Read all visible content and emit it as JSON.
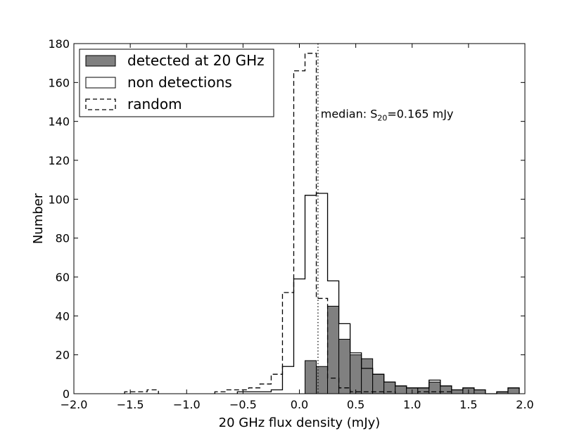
{
  "chart_data": {
    "type": "histogram",
    "xlabel": "20 GHz flux density (mJy)",
    "ylabel": "Number",
    "xlim": [
      -2.0,
      2.0
    ],
    "ylim": [
      0,
      180
    ],
    "x_ticks": [
      -2.0,
      -1.5,
      -1.0,
      -0.5,
      0.0,
      0.5,
      1.0,
      1.5,
      2.0
    ],
    "x_tick_labels": [
      "−2.0",
      "−1.5",
      "−1.0",
      "−0.5",
      "0.0",
      "0.5",
      "1.0",
      "1.5",
      "2.0"
    ],
    "y_ticks": [
      0,
      20,
      40,
      60,
      80,
      100,
      120,
      140,
      160,
      180
    ],
    "y_tick_labels": [
      "0",
      "20",
      "40",
      "60",
      "80",
      "100",
      "120",
      "140",
      "160",
      "180"
    ],
    "bin_width": 0.1,
    "grid": false,
    "legend_position": "top-left",
    "series": [
      {
        "name": "random",
        "style": "dashed-step",
        "bin_left": [
          -1.55,
          -1.45,
          -1.35,
          -0.75,
          -0.65,
          -0.55,
          -0.45,
          -0.35,
          -0.25,
          -0.15,
          -0.05,
          0.05,
          0.15,
          0.25,
          0.35,
          0.45,
          0.55,
          0.65,
          0.75,
          1.05,
          1.15,
          1.25
        ],
        "values": [
          1,
          1,
          2,
          1,
          2,
          2,
          3,
          5,
          10,
          52,
          166,
          175,
          49,
          8,
          3,
          1,
          1,
          1,
          1,
          1,
          1,
          1
        ]
      },
      {
        "name": "non detections",
        "style": "solid-step",
        "bin_left": [
          -0.55,
          -0.45,
          -0.35,
          -0.25,
          -0.15,
          -0.05,
          0.05,
          0.15,
          0.25,
          0.35,
          0.45,
          0.55,
          0.65,
          0.75,
          0.85,
          0.95,
          1.05,
          1.15,
          1.25,
          1.35,
          1.45,
          1.55,
          1.65,
          1.75,
          1.85
        ],
        "values": [
          1,
          1,
          1,
          2,
          14,
          59,
          102,
          103,
          58,
          36,
          21,
          13,
          10,
          6,
          4,
          3,
          3,
          7,
          4,
          2,
          3,
          2,
          0,
          1,
          3
        ]
      },
      {
        "name": "detected at 20 GHz",
        "style": "filled-gray",
        "bin_left": [
          0.05,
          0.15,
          0.25,
          0.35,
          0.45,
          0.55,
          0.65,
          0.75,
          0.85,
          0.95,
          1.05,
          1.15,
          1.25,
          1.35,
          1.45,
          1.55,
          1.65,
          1.75,
          1.85
        ],
        "values": [
          17,
          14,
          45,
          28,
          20,
          18,
          10,
          6,
          4,
          3,
          3,
          6,
          4,
          2,
          3,
          2,
          0,
          1,
          3
        ]
      }
    ],
    "median_line": {
      "x": 0.165,
      "style": "dotted"
    },
    "annotation": {
      "prefix": "median: S",
      "subscript": "20",
      "suffix": "=0.165 mJy",
      "x": 0.17,
      "y": 140
    },
    "colors": {
      "filled": "#808080",
      "line": "#000000",
      "background": "#ffffff"
    }
  }
}
